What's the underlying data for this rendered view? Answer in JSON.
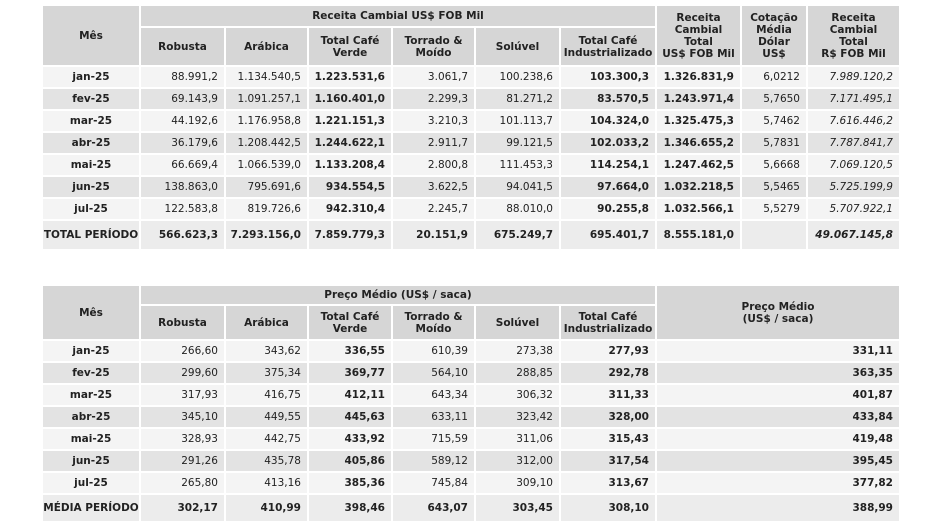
{
  "table1": {
    "month_header": "Mês",
    "group_header": "Receita Cambial US$ FOB Mil",
    "subheaders": [
      [
        "Robusta"
      ],
      [
        "Arábica"
      ],
      [
        "Total Café",
        "Verde"
      ],
      [
        "Torrado &",
        "Moído"
      ],
      [
        "Solúvel"
      ],
      [
        "Total Café",
        "Industrializado"
      ]
    ],
    "right_headers": [
      [
        "Receita",
        "Cambial",
        "Total",
        "US$ FOB Mil"
      ],
      [
        "Cotação",
        "Média",
        "Dólar",
        "US$"
      ],
      [
        "Receita",
        "Cambial",
        "Total",
        "R$ FOB Mil"
      ]
    ],
    "rows": [
      [
        "jan-25",
        "88.991,2",
        "1.134.540,5",
        "1.223.531,6",
        "3.061,7",
        "100.238,6",
        "103.300,3",
        "1.326.831,9",
        "6,0212",
        "7.989.120,2"
      ],
      [
        "fev-25",
        "69.143,9",
        "1.091.257,1",
        "1.160.401,0",
        "2.299,3",
        "81.271,2",
        "83.570,5",
        "1.243.971,4",
        "5,7650",
        "7.171.495,1"
      ],
      [
        "mar-25",
        "44.192,6",
        "1.176.958,8",
        "1.221.151,3",
        "3.210,3",
        "101.113,7",
        "104.324,0",
        "1.325.475,3",
        "5,7462",
        "7.616.446,2"
      ],
      [
        "abr-25",
        "36.179,6",
        "1.208.442,5",
        "1.244.622,1",
        "2.911,7",
        "99.121,5",
        "102.033,2",
        "1.346.655,2",
        "5,7831",
        "7.787.841,7"
      ],
      [
        "mai-25",
        "66.669,4",
        "1.066.539,0",
        "1.133.208,4",
        "2.800,8",
        "111.453,3",
        "114.254,1",
        "1.247.462,5",
        "5,6668",
        "7.069.120,5"
      ],
      [
        "jun-25",
        "138.863,0",
        "795.691,6",
        "934.554,5",
        "3.622,5",
        "94.041,5",
        "97.664,0",
        "1.032.218,5",
        "5,5465",
        "5.725.199,9"
      ],
      [
        "jul-25",
        "122.583,8",
        "819.726,6",
        "942.310,4",
        "2.245,7",
        "88.010,0",
        "90.255,8",
        "1.032.566,1",
        "5,5279",
        "5.707.922,1"
      ]
    ],
    "total": [
      "TOTAL PERÍODO",
      "566.623,3",
      "7.293.156,0",
      "7.859.779,3",
      "20.151,9",
      "675.249,7",
      "695.401,7",
      "8.555.181,0",
      null,
      "49.067.145,8"
    ]
  },
  "table2": {
    "month_header": "Mês",
    "group_header": "Preço Médio (US$ / saca)",
    "subheaders": [
      [
        "Robusta"
      ],
      [
        "Arábica"
      ],
      [
        "Total Café",
        "Verde"
      ],
      [
        "Torrado &",
        "Moído"
      ],
      [
        "Solúvel"
      ],
      [
        "Total Café",
        "Industrializado"
      ]
    ],
    "right_headers": [
      [
        "Preço Médio",
        "(US$ / saca)"
      ]
    ],
    "rows": [
      [
        "jan-25",
        "266,60",
        "343,62",
        "336,55",
        "610,39",
        "273,38",
        "277,93",
        "331,11"
      ],
      [
        "fev-25",
        "299,60",
        "375,34",
        "369,77",
        "564,10",
        "288,85",
        "292,78",
        "363,35"
      ],
      [
        "mar-25",
        "317,93",
        "416,75",
        "412,11",
        "643,34",
        "306,32",
        "311,33",
        "401,87"
      ],
      [
        "abr-25",
        "345,10",
        "449,55",
        "445,63",
        "633,11",
        "323,42",
        "328,00",
        "433,84"
      ],
      [
        "mai-25",
        "328,93",
        "442,75",
        "433,92",
        "715,59",
        "311,06",
        "315,43",
        "419,48"
      ],
      [
        "jun-25",
        "291,26",
        "435,78",
        "405,86",
        "589,12",
        "312,00",
        "317,54",
        "395,45"
      ],
      [
        "jul-25",
        "265,80",
        "413,16",
        "385,36",
        "745,84",
        "309,10",
        "313,67",
        "377,82"
      ]
    ],
    "total": [
      "MÉDIA PERÍODO",
      "302,17",
      "410,99",
      "398,46",
      "643,07",
      "303,45",
      "308,10",
      "388,99"
    ]
  }
}
